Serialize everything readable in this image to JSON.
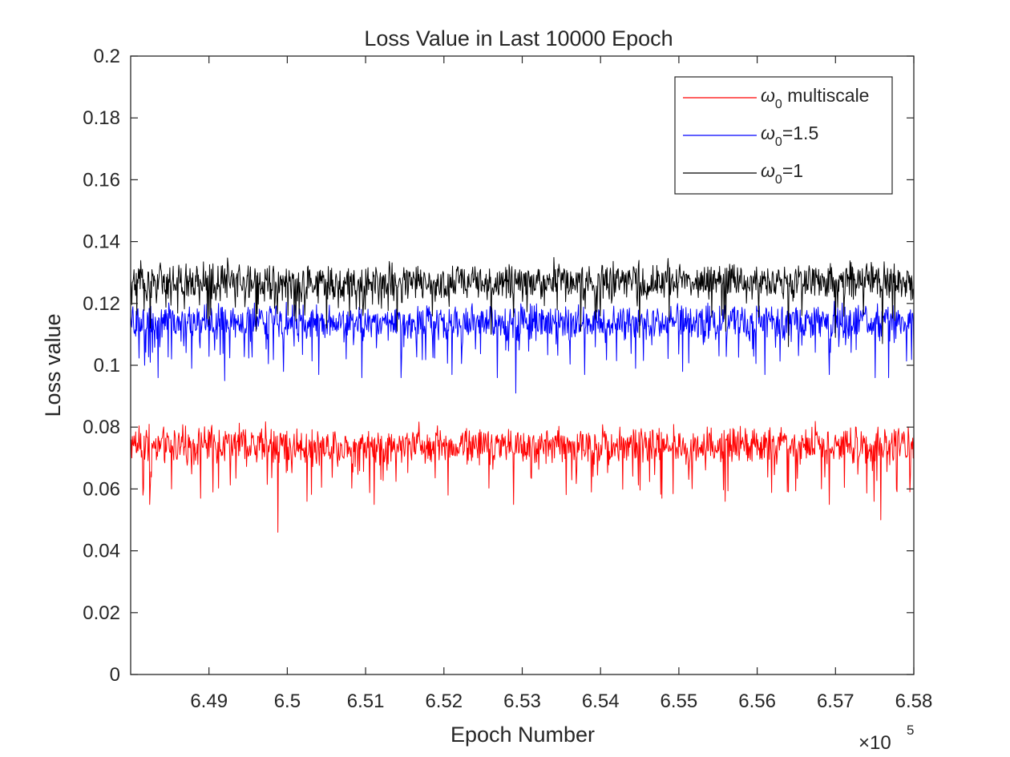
{
  "chart_data": {
    "type": "line",
    "title": "Loss Value in Last 10000 Epoch",
    "xlabel": "Epoch Number",
    "ylabel": "Loss value",
    "x_exponent_label": "×10",
    "x_exponent": "5",
    "xlim": [
      6.48,
      6.58
    ],
    "ylim": [
      0,
      0.2
    ],
    "xticks": [
      6.49,
      6.5,
      6.51,
      6.52,
      6.53,
      6.54,
      6.55,
      6.56,
      6.57,
      6.58
    ],
    "xtick_labels": [
      "6.49",
      "6.5",
      "6.51",
      "6.52",
      "6.53",
      "6.54",
      "6.55",
      "6.56",
      "6.57",
      "6.58"
    ],
    "yticks": [
      0,
      0.02,
      0.04,
      0.06,
      0.08,
      0.1,
      0.12,
      0.14,
      0.16,
      0.18,
      0.2
    ],
    "ytick_labels": [
      "0",
      "0.02",
      "0.04",
      "0.06",
      "0.08",
      "0.1",
      "0.12",
      "0.14",
      "0.16",
      "0.18",
      "0.2"
    ],
    "grid": false,
    "box": true,
    "legend_position": "top-right",
    "series": [
      {
        "name": "multiscale",
        "legend_symbol": "ω",
        "legend_subscript": "0",
        "legend_suffix": " multiscale",
        "color": "#ff0000",
        "typical_value": 0.0745,
        "band": [
          0.068,
          0.08
        ],
        "max": 0.082,
        "min": 0.046,
        "min_at_x": 6.4988,
        "dips": [
          {
            "x": 6.4816,
            "y": 0.058
          },
          {
            "x": 6.4824,
            "y": 0.055
          },
          {
            "x": 6.4852,
            "y": 0.06
          },
          {
            "x": 6.4889,
            "y": 0.057
          },
          {
            "x": 6.4905,
            "y": 0.059
          },
          {
            "x": 6.4988,
            "y": 0.046
          },
          {
            "x": 6.5025,
            "y": 0.056
          },
          {
            "x": 6.5111,
            "y": 0.055
          },
          {
            "x": 6.5205,
            "y": 0.058
          },
          {
            "x": 6.5289,
            "y": 0.055
          },
          {
            "x": 6.5388,
            "y": 0.059
          },
          {
            "x": 6.5478,
            "y": 0.057
          },
          {
            "x": 6.5559,
            "y": 0.056
          },
          {
            "x": 6.564,
            "y": 0.059
          },
          {
            "x": 6.5692,
            "y": 0.055
          },
          {
            "x": 6.5749,
            "y": 0.056
          },
          {
            "x": 6.5758,
            "y": 0.05
          },
          {
            "x": 6.5778,
            "y": 0.06
          }
        ]
      },
      {
        "name": "1.5",
        "legend_symbol": "ω",
        "legend_subscript": "0",
        "legend_suffix": "=1.5",
        "color": "#0000ff",
        "typical_value": 0.1145,
        "band": [
          0.108,
          0.12
        ],
        "max": 0.121,
        "min": 0.091,
        "min_at_x": 6.5292,
        "dips": [
          {
            "x": 6.4818,
            "y": 0.1
          },
          {
            "x": 6.4835,
            "y": 0.096
          },
          {
            "x": 6.4852,
            "y": 0.102
          },
          {
            "x": 6.4878,
            "y": 0.099
          },
          {
            "x": 6.492,
            "y": 0.095
          },
          {
            "x": 6.4995,
            "y": 0.098
          },
          {
            "x": 6.504,
            "y": 0.097
          },
          {
            "x": 6.5095,
            "y": 0.096
          },
          {
            "x": 6.5145,
            "y": 0.096
          },
          {
            "x": 6.521,
            "y": 0.097
          },
          {
            "x": 6.5268,
            "y": 0.096
          },
          {
            "x": 6.5292,
            "y": 0.091
          },
          {
            "x": 6.538,
            "y": 0.097
          },
          {
            "x": 6.5445,
            "y": 0.099
          },
          {
            "x": 6.5505,
            "y": 0.098
          },
          {
            "x": 6.561,
            "y": 0.097
          },
          {
            "x": 6.5692,
            "y": 0.097
          },
          {
            "x": 6.5751,
            "y": 0.096
          },
          {
            "x": 6.5768,
            "y": 0.096
          }
        ]
      },
      {
        "name": "1",
        "legend_symbol": "ω",
        "legend_subscript": "0",
        "legend_suffix": "=1",
        "color": "#000000",
        "typical_value": 0.1275,
        "band": [
          0.121,
          0.133
        ],
        "max": 0.135,
        "min": 0.106,
        "min_at_x": 6.564,
        "dips": [
          {
            "x": 6.4825,
            "y": 0.112
          },
          {
            "x": 6.49,
            "y": 0.113
          },
          {
            "x": 6.496,
            "y": 0.111
          },
          {
            "x": 6.505,
            "y": 0.112
          },
          {
            "x": 6.514,
            "y": 0.111
          },
          {
            "x": 6.526,
            "y": 0.11
          },
          {
            "x": 6.5375,
            "y": 0.111
          },
          {
            "x": 6.545,
            "y": 0.109
          },
          {
            "x": 6.556,
            "y": 0.111
          },
          {
            "x": 6.564,
            "y": 0.106
          },
          {
            "x": 6.57,
            "y": 0.109
          },
          {
            "x": 6.576,
            "y": 0.107
          }
        ]
      }
    ]
  }
}
